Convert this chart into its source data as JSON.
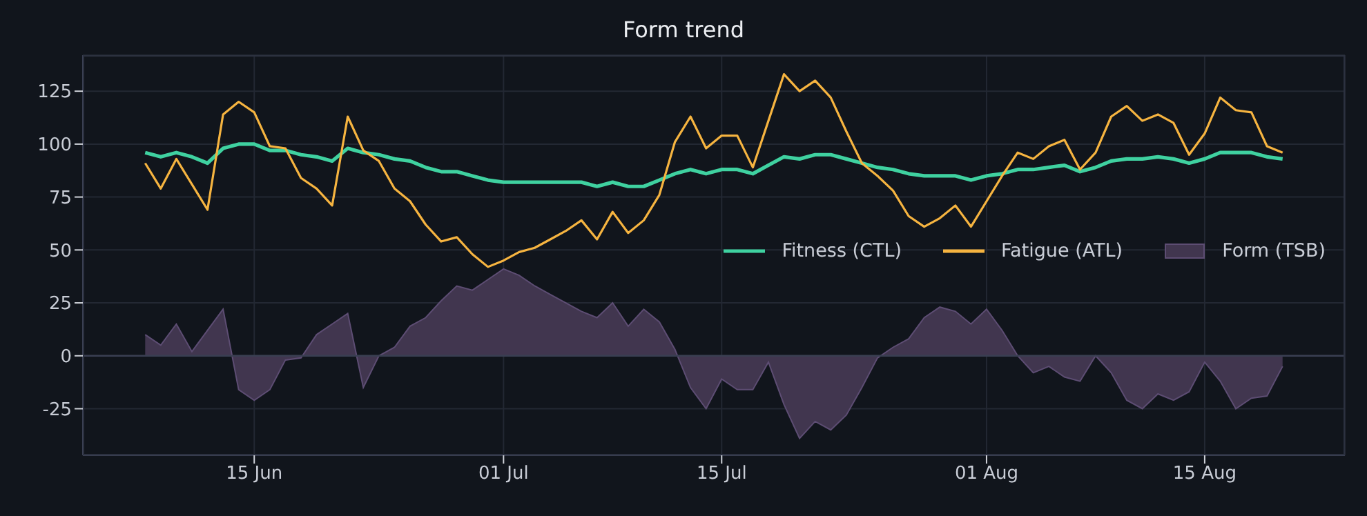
{
  "chart_data": {
    "type": "line",
    "title": "Form trend",
    "x": [
      "--06-08",
      "--06-09",
      "--06-10",
      "--06-11",
      "--06-12",
      "--06-13",
      "--06-14",
      "--06-15",
      "--06-16",
      "--06-17",
      "--06-18",
      "--06-19",
      "--06-20",
      "--06-21",
      "--06-22",
      "--06-23",
      "--06-24",
      "--06-25",
      "--06-26",
      "--06-27",
      "--06-28",
      "--06-29",
      "--06-30",
      "--07-01",
      "--07-02",
      "--07-03",
      "--07-04",
      "--07-05",
      "--07-06",
      "--07-07",
      "--07-08",
      "--07-09",
      "--07-10",
      "--07-11",
      "--07-12",
      "--07-13",
      "--07-14",
      "--07-15",
      "--07-16",
      "--07-17",
      "--07-18",
      "--07-19",
      "--07-20",
      "--07-21",
      "--07-22",
      "--07-23",
      "--07-24",
      "--07-25",
      "--07-26",
      "--07-27",
      "--07-28",
      "--07-29",
      "--07-30",
      "--07-31",
      "--08-01",
      "--08-02",
      "--08-03",
      "--08-04",
      "--08-05",
      "--08-06",
      "--08-07",
      "--08-08",
      "--08-09",
      "--08-10",
      "--08-11",
      "--08-12",
      "--08-13",
      "--08-14",
      "--08-15",
      "--08-16",
      "--08-17",
      "--08-18",
      "--08-19",
      "--08-20"
    ],
    "series": [
      {
        "name": "Fitness (CTL)",
        "color": "#3fd1a0",
        "values": [
          96,
          94,
          96,
          94,
          91,
          98,
          100,
          100,
          97,
          97,
          95,
          94,
          92,
          98,
          96,
          95,
          93,
          92,
          89,
          87,
          87,
          85,
          83,
          82,
          82,
          82,
          82,
          82,
          82,
          80,
          82,
          80,
          80,
          83,
          86,
          88,
          86,
          88,
          88,
          86,
          90,
          94,
          93,
          95,
          95,
          93,
          91,
          89,
          88,
          86,
          85,
          85,
          85,
          83,
          85,
          86,
          88,
          88,
          89,
          90,
          87,
          89,
          92,
          93,
          93,
          94,
          93,
          91,
          93,
          96,
          96,
          96,
          94,
          93
        ]
      },
      {
        "name": "Fatigue (ATL)",
        "color": "#f6b440",
        "values": [
          91,
          79,
          93,
          81,
          69,
          114,
          120,
          115,
          99,
          98,
          84,
          79,
          71,
          113,
          97,
          92,
          79,
          73,
          62,
          54,
          56,
          48,
          42,
          45,
          49,
          51,
          55,
          59,
          64,
          55,
          68,
          58,
          64,
          76,
          101,
          113,
          98,
          104,
          104,
          89,
          111,
          133,
          125,
          130,
          122,
          106,
          91,
          85,
          78,
          66,
          61,
          65,
          71,
          61,
          73,
          85,
          96,
          93,
          99,
          102,
          88,
          96,
          113,
          118,
          111,
          114,
          110,
          95,
          105,
          122,
          116,
          115,
          99,
          96
        ]
      },
      {
        "name": "Form (TSB)",
        "type": "area",
        "color": "#41364f",
        "values": [
          10,
          5,
          15,
          2,
          12,
          22,
          -16,
          -21,
          -16,
          -2,
          -1,
          10,
          15,
          20,
          -15,
          0,
          4,
          14,
          18,
          26,
          33,
          31,
          36,
          41,
          38,
          33,
          29,
          25,
          21,
          18,
          25,
          14,
          22,
          16,
          3,
          -15,
          -25,
          -11,
          -16,
          -16,
          -3,
          -23,
          -39,
          -31,
          -35,
          -28,
          -15,
          -1,
          4,
          8,
          18,
          23,
          21,
          15,
          22,
          12,
          0,
          -8,
          -5,
          -10,
          -12,
          0,
          -8,
          -21,
          -25,
          -18,
          -21,
          -17,
          -3,
          -12,
          -25,
          -20,
          -19,
          -5
        ]
      }
    ],
    "xlim": [
      "--06-04",
      "--08-24"
    ],
    "xticks": [
      {
        "value": "--06-15",
        "label": "15 Jun"
      },
      {
        "value": "--07-01",
        "label": "01 Jul"
      },
      {
        "value": "--07-15",
        "label": "15 Jul"
      },
      {
        "value": "--08-01",
        "label": "01 Aug"
      },
      {
        "value": "--08-15",
        "label": "15 Aug"
      }
    ],
    "ylim": [
      -47,
      142
    ],
    "yticks": [
      -25,
      0,
      25,
      50,
      75,
      100,
      125
    ],
    "ref_lines": [
      {
        "axis": "y",
        "value": 0,
        "color": "#3a3f52"
      }
    ],
    "grid": true,
    "legend": "right"
  }
}
